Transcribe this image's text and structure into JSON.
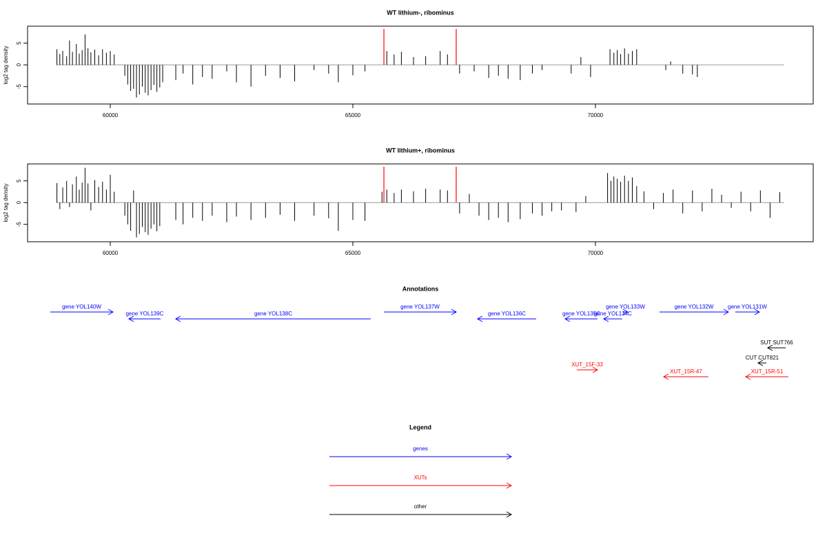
{
  "chart_data": [
    {
      "type": "bar",
      "title": "WT lithium-, ribominus",
      "y_label": "log2 tag density",
      "color": "#000000",
      "xlim": [
        58295,
        74489
      ],
      "ylim": [
        -9,
        8.9
      ],
      "xticks": [
        60000,
        65000,
        70000
      ],
      "yticks": [
        -5,
        0,
        5
      ],
      "markers": {
        "x": [
          65640,
          67130
        ],
        "color": "#ff0000"
      },
      "baseline_range": [
        58890,
        73890
      ],
      "x": [
        58900,
        58960,
        59020,
        59100,
        59160,
        59220,
        59300,
        59360,
        59420,
        59480,
        59540,
        59600,
        59680,
        59760,
        59840,
        59920,
        60000,
        60080,
        60300,
        60360,
        60420,
        60480,
        60540,
        60600,
        60660,
        60720,
        60780,
        60840,
        60900,
        60960,
        61020,
        61080,
        61350,
        61500,
        61700,
        61900,
        62100,
        62400,
        62600,
        62900,
        63200,
        63500,
        63800,
        64200,
        64500,
        64700,
        65000,
        65250,
        65700,
        65850,
        66000,
        66250,
        66500,
        66800,
        66950,
        67200,
        67500,
        67800,
        68000,
        68200,
        68450,
        68700,
        68900,
        69500,
        69700,
        69900,
        70300,
        70380,
        70450,
        70520,
        70600,
        70680,
        70760,
        70850,
        71450,
        71550,
        71800,
        72000,
        72100
      ],
      "values": [
        3.6,
        2.5,
        3.2,
        2.0,
        5.6,
        3.0,
        4.8,
        2.6,
        3.4,
        7.0,
        3.8,
        2.9,
        3.5,
        2.2,
        3.6,
        2.8,
        3.2,
        2.4,
        -2.5,
        -4.5,
        -6.0,
        -5.5,
        -7.5,
        -6.8,
        -5.0,
        -6.4,
        -7.0,
        -5.8,
        -4.6,
        -6.2,
        -5.2,
        -4.0,
        -3.5,
        -2.0,
        -4.5,
        -2.8,
        -3.2,
        -1.5,
        -4.0,
        -5.0,
        -2.5,
        -3.0,
        -3.8,
        -1.2,
        -2.0,
        -4.0,
        -2.4,
        -1.5,
        3.2,
        2.4,
        3.0,
        1.8,
        2.0,
        3.2,
        2.4,
        -2.0,
        -1.5,
        -3.0,
        -2.5,
        -3.2,
        -3.5,
        -2.0,
        -1.2,
        -2.0,
        1.8,
        -2.8,
        3.6,
        2.8,
        3.4,
        2.5,
        3.8,
        2.6,
        3.2,
        3.6,
        -1.2,
        0.8,
        -2.0,
        -2.2,
        -2.8
      ]
    },
    {
      "type": "bar",
      "title": "WT lithium+, ribominus",
      "y_label": "log2 tag density",
      "color": "#000000",
      "xlim": [
        58295,
        74489
      ],
      "ylim": [
        -9,
        8.9
      ],
      "xticks": [
        60000,
        65000,
        70000
      ],
      "yticks": [
        -5,
        0,
        5
      ],
      "markers": {
        "x": [
          65640,
          67130
        ],
        "color": "#ff0000"
      },
      "baseline_range": [
        58890,
        73890
      ],
      "x": [
        58900,
        58960,
        59020,
        59100,
        59160,
        59220,
        59300,
        59360,
        59420,
        59480,
        59540,
        59600,
        59680,
        59760,
        59840,
        59920,
        60000,
        60080,
        60300,
        60360,
        60420,
        60480,
        60540,
        60600,
        60660,
        60720,
        60780,
        60840,
        60900,
        60960,
        61020,
        61350,
        61500,
        61700,
        61900,
        62100,
        62400,
        62600,
        62900,
        63200,
        63500,
        63800,
        64200,
        64500,
        64700,
        65000,
        65250,
        65600,
        65700,
        65850,
        66000,
        66250,
        66500,
        66800,
        66950,
        67200,
        67400,
        67600,
        67800,
        68000,
        68200,
        68450,
        68700,
        68900,
        69100,
        69300,
        69600,
        69800,
        70250,
        70320,
        70380,
        70450,
        70520,
        70600,
        70680,
        70760,
        70850,
        71000,
        71200,
        71400,
        71600,
        71800,
        72000,
        72200,
        72400,
        72600,
        72800,
        73000,
        73200,
        73400,
        73600,
        73800
      ],
      "values": [
        4.5,
        -1.5,
        3.5,
        5.0,
        -1.0,
        4.2,
        6.0,
        3.0,
        4.6,
        8.0,
        4.4,
        -1.8,
        5.2,
        3.6,
        4.8,
        3.0,
        6.4,
        2.5,
        -3.0,
        -5.0,
        -6.5,
        2.8,
        -8.0,
        -7.2,
        -5.6,
        -6.8,
        -7.4,
        -6.0,
        -5.0,
        -6.6,
        -5.4,
        -4.0,
        -5.0,
        -3.5,
        -4.2,
        -3.0,
        -4.5,
        -3.2,
        -4.0,
        -3.5,
        -2.8,
        -4.2,
        -3.0,
        -3.6,
        -6.5,
        -4.0,
        -4.2,
        2.5,
        3.0,
        2.2,
        3.0,
        2.6,
        3.2,
        3.0,
        2.8,
        -2.5,
        2.0,
        -3.0,
        -4.0,
        -3.5,
        -4.5,
        -3.8,
        -2.5,
        -3.0,
        -2.0,
        -1.8,
        -2.2,
        1.5,
        6.8,
        5.0,
        6.0,
        5.5,
        4.8,
        6.2,
        5.0,
        5.8,
        3.8,
        2.6,
        -1.5,
        2.2,
        3.0,
        -2.5,
        2.8,
        -2.0,
        3.2,
        1.8,
        -1.2,
        2.5,
        -2.0,
        2.8,
        -3.5,
        2.4
      ]
    }
  ],
  "annotations": {
    "title": "Annotations",
    "features": [
      {
        "label": "gene YOL140W",
        "start": 58764,
        "end": 60056,
        "strand": "+",
        "color": "#0000ff"
      },
      {
        "label": "gene YOL139C",
        "start": 60383,
        "end": 61036,
        "strand": "-",
        "color": "#0000ff"
      },
      {
        "label": "gene YOL138C",
        "start": 61349,
        "end": 65369,
        "strand": "-",
        "color": "#0000ff"
      },
      {
        "label": "gene YOL137W",
        "start": 65639,
        "end": 67130,
        "strand": "+",
        "color": "#0000ff"
      },
      {
        "label": "gene YOL136C",
        "start": 67570,
        "end": 68778,
        "strand": "-",
        "color": "#0000ff"
      },
      {
        "label": "gene YOL135C",
        "start": 69375,
        "end": 70043,
        "strand": "-",
        "color": "#0000ff"
      },
      {
        "label": "gene YOL134C",
        "start": 70170,
        "end": 70553,
        "strand": "-",
        "color": "#0000ff"
      },
      {
        "label": "gene YOL133W",
        "start": 70568,
        "end": 70668,
        "strand": "+",
        "color": "#0000ff"
      },
      {
        "label": "gene YOL132W",
        "start": 71321,
        "end": 72741,
        "strand": "+",
        "color": "#0000ff"
      },
      {
        "label": "gene YOL131W",
        "start": 72883,
        "end": 73380,
        "strand": "+",
        "color": "#0000ff"
      },
      {
        "label": "SUT SUT766",
        "start": 73551,
        "end": 73920,
        "strand": "-",
        "color": "#000000"
      },
      {
        "label": "CUT CUT821",
        "start": 73352,
        "end": 73522,
        "strand": "-",
        "color": "#000000"
      },
      {
        "label": "XUT_15F-33",
        "start": 69616,
        "end": 70043,
        "strand": "+",
        "color": "#ff0000"
      },
      {
        "label": "XUT_15R-47",
        "start": 71406,
        "end": 72329,
        "strand": "-",
        "color": "#ff0000"
      },
      {
        "label": "XUT_15R-51",
        "start": 73096,
        "end": 73977,
        "strand": "-",
        "color": "#ff0000"
      }
    ]
  },
  "legend": {
    "title": "Legend",
    "items": [
      {
        "label": "genes",
        "color": "#0000ff"
      },
      {
        "label": "XUTs",
        "color": "#ff0000"
      },
      {
        "label": "other",
        "color": "#000000"
      }
    ]
  }
}
